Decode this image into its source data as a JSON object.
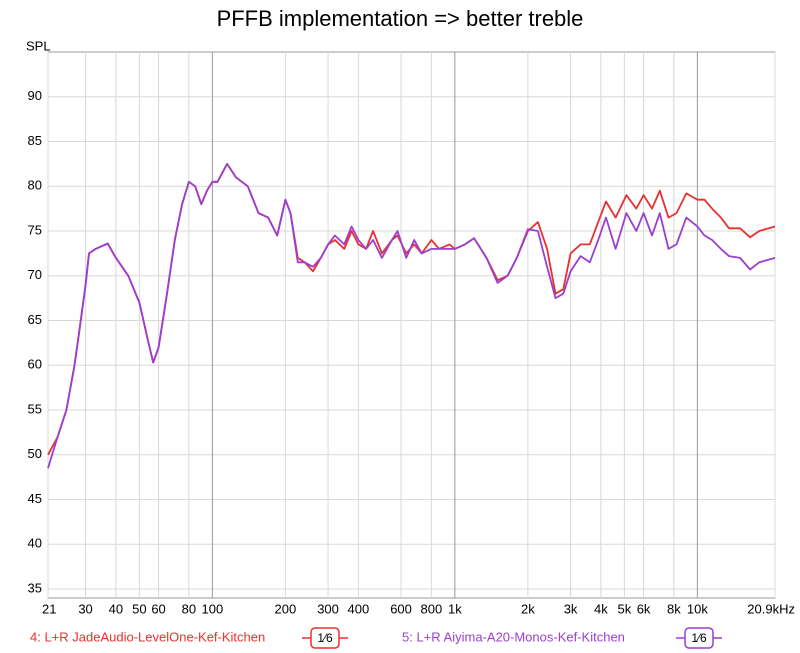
{
  "chart_data": {
    "type": "line",
    "title": "PFFB implementation => better treble",
    "y_label": "SPL",
    "x_scale": "log",
    "grid": true,
    "xlim": [
      21,
      20900
    ],
    "ylim": [
      34,
      95
    ],
    "xticks": [
      21,
      30,
      40,
      50,
      60,
      80,
      100,
      200,
      300,
      400,
      600,
      800,
      {
        "value": 1000,
        "label": "1k"
      },
      {
        "value": 2000,
        "label": "2k"
      },
      {
        "value": 3000,
        "label": "3k"
      },
      {
        "value": 4000,
        "label": "4k"
      },
      {
        "value": 5000,
        "label": "5k"
      },
      {
        "value": 6000,
        "label": "6k"
      },
      {
        "value": 8000,
        "label": "8k"
      },
      {
        "value": 10000,
        "label": "10k"
      },
      {
        "value": 20900,
        "label": "20.9kHz"
      }
    ],
    "yticks": [
      35,
      40,
      45,
      50,
      55,
      60,
      65,
      70,
      75,
      80,
      85,
      90
    ],
    "x": [
      21,
      23,
      25,
      27,
      28,
      30,
      31,
      33,
      35,
      37,
      40,
      45,
      50,
      54,
      57,
      60,
      65,
      70,
      75,
      80,
      85,
      90,
      95,
      100,
      105,
      115,
      125,
      140,
      155,
      170,
      185,
      200,
      210,
      225,
      240,
      260,
      280,
      300,
      320,
      350,
      375,
      400,
      430,
      460,
      500,
      550,
      580,
      630,
      680,
      730,
      800,
      860,
      950,
      1000,
      1100,
      1200,
      1350,
      1500,
      1650,
      1800,
      2000,
      2200,
      2400,
      2600,
      2800,
      3000,
      3300,
      3600,
      3900,
      4200,
      4600,
      5100,
      5600,
      6000,
      6500,
      7000,
      7600,
      8200,
      9000,
      10000,
      10700,
      11500,
      12500,
      13500,
      15000,
      16500,
      18000,
      20900
    ],
    "series": [
      {
        "name": "4: L+R JadeAudio-LevelOne-Kef-Kitchen",
        "smoothing": "1⁄6",
        "color": "#e8302e",
        "values": [
          50,
          52,
          55,
          60,
          63,
          69,
          72.5,
          73,
          73.3,
          73.6,
          72,
          70,
          67,
          63,
          60.3,
          62,
          68,
          74,
          78,
          80.5,
          80,
          78,
          79.5,
          80.5,
          80.5,
          82.5,
          81,
          80,
          77,
          76.5,
          74.5,
          78.5,
          77,
          72,
          71.5,
          70.5,
          72,
          73.5,
          74,
          73,
          75,
          73.5,
          73,
          75,
          72.5,
          74,
          74.5,
          72.5,
          73.5,
          72.5,
          74,
          73,
          73.5,
          73,
          73.5,
          74.2,
          72,
          69.5,
          70,
          72,
          75,
          76,
          73,
          68,
          68.5,
          72.5,
          73.5,
          73.5,
          76,
          78.3,
          76.5,
          79,
          77.5,
          79,
          77.5,
          79.5,
          76.5,
          77,
          79.2,
          78.5,
          78.5,
          77.5,
          76.5,
          75.3,
          75.3,
          74.3,
          75,
          75.5
        ]
      },
      {
        "name": "5: L+R Aiyima-A20-Monos-Kef-Kitchen",
        "smoothing": "1⁄6",
        "color": "#9b3fd0",
        "values": [
          48.5,
          52,
          55,
          60,
          63,
          69,
          72.5,
          73,
          73.3,
          73.6,
          72,
          70,
          67,
          63,
          60.3,
          62,
          68,
          74,
          78,
          80.5,
          80,
          78,
          79.5,
          80.5,
          80.5,
          82.5,
          81,
          80,
          77,
          76.5,
          74.5,
          78.5,
          77,
          71.5,
          71.5,
          71,
          72,
          73.5,
          74.5,
          73.5,
          75.5,
          74,
          73,
          74,
          72,
          74,
          75,
          72,
          74,
          72.5,
          73,
          73,
          73,
          73,
          73.5,
          74.2,
          72,
          69.2,
          70,
          72,
          75.2,
          75,
          71,
          67.5,
          68,
          70.5,
          72.2,
          71.5,
          74,
          76.5,
          73,
          77,
          75,
          77,
          74.5,
          77,
          73,
          73.5,
          76.5,
          75.5,
          74.5,
          74,
          73,
          72.2,
          72,
          70.7,
          71.5,
          72
        ]
      }
    ]
  }
}
